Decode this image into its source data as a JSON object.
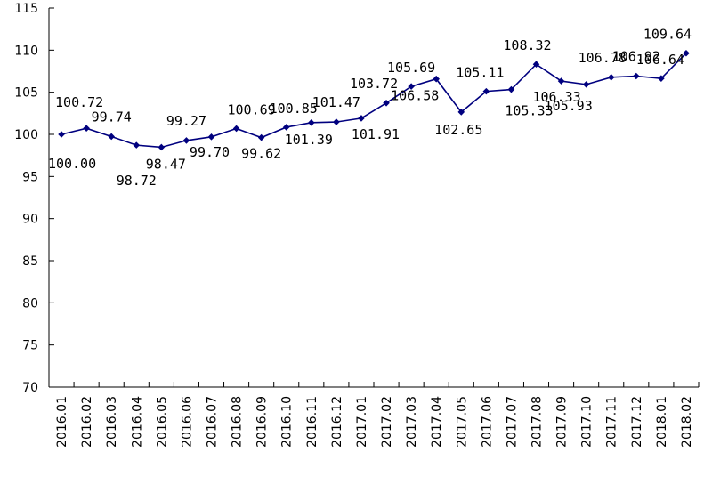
{
  "chart_data": {
    "type": "line",
    "title": "",
    "xlabel": "",
    "ylabel": "",
    "ylim": [
      70,
      115
    ],
    "y_ticks": [
      70,
      75,
      80,
      85,
      90,
      95,
      100,
      105,
      110,
      115
    ],
    "grid": false,
    "legend": "none",
    "categories": [
      "2016.01",
      "2016.02",
      "2016.03",
      "2016.04",
      "2016.05",
      "2016.06",
      "2016.07",
      "2016.08",
      "2016.09",
      "2016.10",
      "2016.11",
      "2016.12",
      "2017.01",
      "2017.02",
      "2017.03",
      "2017.04",
      "2017.05",
      "2017.06",
      "2017.07",
      "2017.08",
      "2017.09",
      "2017.10",
      "2017.11",
      "2017.12",
      "2018.01",
      "2018.02"
    ],
    "series": [
      {
        "color": "#00007f",
        "marker": "diamond",
        "values": [
          100.0,
          100.72,
          99.74,
          98.72,
          98.47,
          99.27,
          99.7,
          100.69,
          99.62,
          100.85,
          101.39,
          101.47,
          101.91,
          103.72,
          105.69,
          106.58,
          102.65,
          105.11,
          105.33,
          108.32,
          106.33,
          105.93,
          106.78,
          106.92,
          106.64,
          109.64
        ],
        "labels": [
          "100.00",
          "100.72",
          "99.74",
          "98.72",
          "98.47",
          "99.27",
          "99.70",
          "100.69",
          "99.62",
          "100.85",
          "101.39",
          "101.47",
          "101.91",
          "103.72",
          "105.69",
          "106.58",
          "102.65",
          "105.11",
          "105.33",
          "108.32",
          "106.33",
          "105.93",
          "106.78",
          "106.92",
          "106.64",
          "109.64"
        ]
      }
    ]
  }
}
